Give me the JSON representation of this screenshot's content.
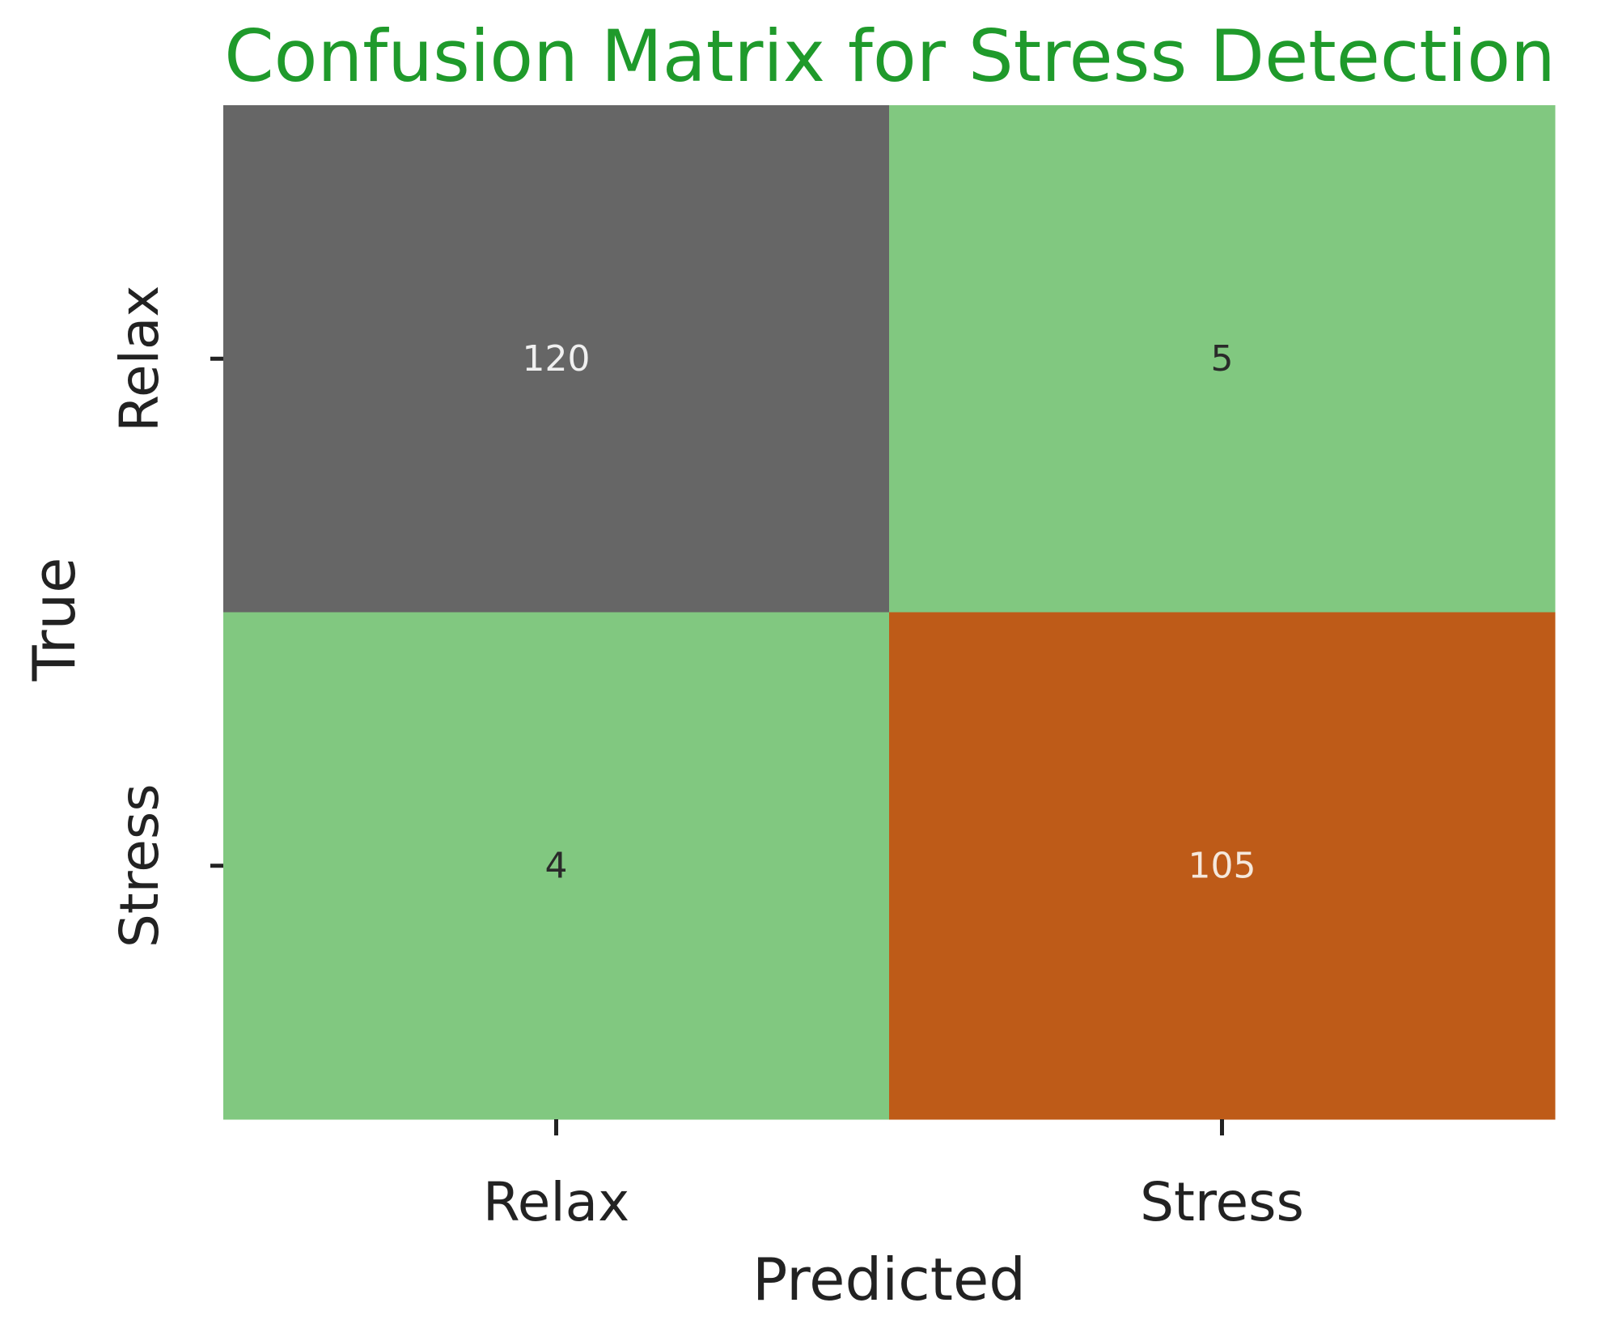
{
  "chart_data": {
    "type": "heatmap",
    "title": "Confusion Matrix for Stress Detection",
    "xlabel": "Predicted",
    "ylabel": "True",
    "x_categories": [
      "Relax",
      "Stress"
    ],
    "y_categories": [
      "Relax",
      "Stress"
    ],
    "values": [
      [
        120,
        5
      ],
      [
        4,
        105
      ]
    ],
    "cell_colors": [
      [
        "#666666",
        "#81c880"
      ],
      [
        "#81c880",
        "#be5b18"
      ]
    ],
    "text_colors": [
      [
        "#f0f0f0",
        "#2a2a2a"
      ],
      [
        "#2a2a2a",
        "#f5e8dc"
      ]
    ],
    "title_color": "#1f9a2b",
    "colorbar": false,
    "grid": false
  }
}
